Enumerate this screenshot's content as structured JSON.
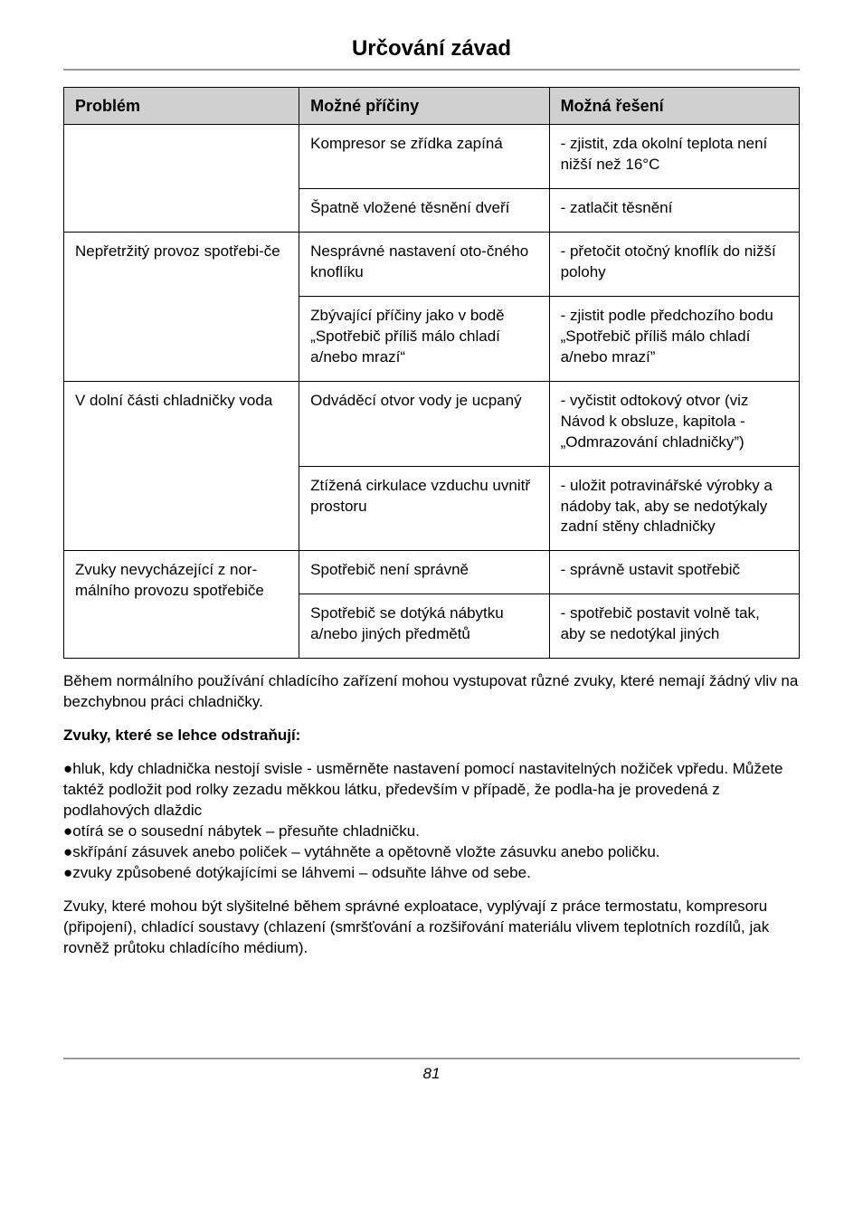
{
  "title": "Určování závad",
  "table": {
    "columns": [
      {
        "label": "Problém",
        "width": "32%"
      },
      {
        "label": "Možné příčiny",
        "width": "34%"
      },
      {
        "label": "Možná řešení",
        "width": "34%"
      }
    ],
    "rows": [
      {
        "c0": "",
        "c1": "Kompresor se zřídka zapíná",
        "c2": "- zjistit, zda okolní teplota není nižší než 16°C"
      },
      {
        "c0": "",
        "c1": "Špatně vložené těsnění dveří",
        "c2": "- zatlačit těsnění"
      },
      {
        "c0": "Nepřetržitý provoz spotřebi-če",
        "c1": "Nesprávné nastavení oto-čného knoflíku",
        "c2": "- přetočit otočný knoflík do nižší polohy"
      },
      {
        "c0": "",
        "c1": "Zbývající příčiny jako v bodě „Spotřebič příliš málo chladí a/nebo mrazí“",
        "c2": "- zjistit podle předchozího bodu  „Spotřebič příliš málo chladí a/nebo mrazí”"
      },
      {
        "c0": "V dolní části chladničky voda",
        "c1": "Odváděcí otvor vody je ucpaný",
        "c2": "- vyčistit odtokový otvor (viz Návod k obsluze, kapitola - „Odmrazování chladničky”)"
      },
      {
        "c0": "",
        "c1": "Ztížená cirkulace vzduchu uvnitř prostoru",
        "c2": "- uložit potravinářské výrobky a nádoby tak, aby se nedotýkaly zadní stěny chladničky"
      },
      {
        "c0": "Zvuky nevycházející z nor-málního provozu spotřebiče",
        "c1": "Spotřebič není správně",
        "c2": "- správně ustavit spotřebič"
      },
      {
        "c0": "",
        "c1": "Spotřebič se dotýká nábytku a/nebo jiných předmětů",
        "c2": "- spotřebič postavit volně tak, aby se nedotýkal jiných"
      }
    ],
    "rowspans": [
      {
        "startRow": 0,
        "span": 2
      },
      {
        "startRow": 2,
        "span": 2
      },
      {
        "startRow": 4,
        "span": 2
      },
      {
        "startRow": 6,
        "span": 2
      }
    ]
  },
  "afterTable": "Během normálního používání chladícího zařízení mohou vystupovat různé zvuky, které nemají žádný vliv na bezchybnou práci chladničky.",
  "subheading": "Zvuky, které se lehce odstraňují:",
  "bullets": [
    "hluk, kdy chladnička nestojí svisle - usměrněte nastavení pomocí nastavitelných nožiček vpředu. Můžete taktéž podložit pod rolky zezadu měkkou látku, především v případě, že podla-ha je provedená z podlahových dlaždic",
    "otírá se o sousední nábytek – přesuňte chladničku.",
    "skřípání zásuvek anebo poliček – vytáhněte a opětovně vložte zásuvku anebo poličku.",
    "zvuky způsobené dotýkajícími se láhvemi – odsuňte láhve od sebe."
  ],
  "closing": "Zvuky, které mohou být slyšitelné během správné exploatace, vyplývají z práce termostatu, kompresoru (připojení), chladící soustavy (chlazení (smršťování a rozšiřování materiálu vlivem teplotních rozdílů, jak rovněž průtoku chladícího médium).",
  "pageNumber": "81",
  "bulletGlyph": "●"
}
